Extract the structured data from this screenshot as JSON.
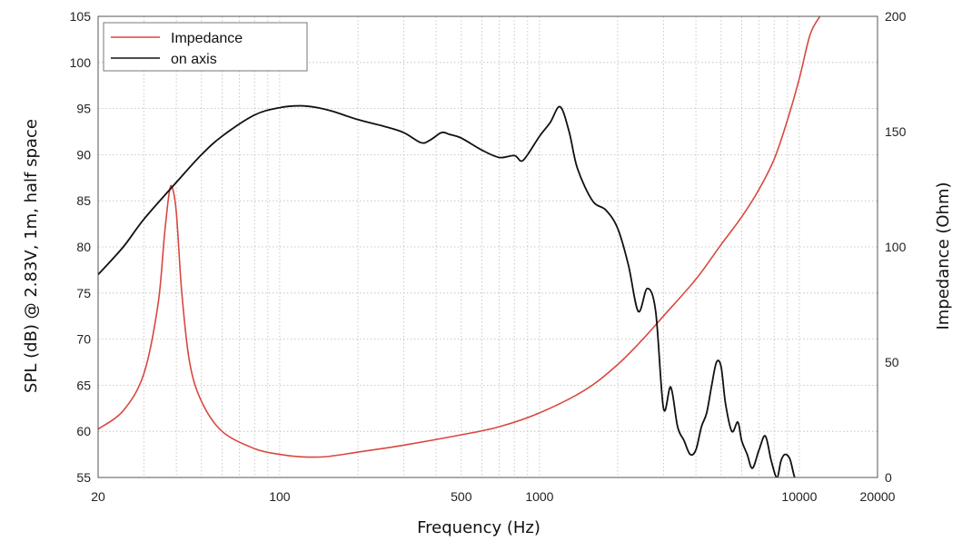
{
  "chart_data": {
    "type": "line",
    "title": "",
    "xlabel": "Frequency (Hz)",
    "ylabel": "SPL (dB) @ 2.83V, 1m, half space",
    "y2label": "Impedance (Ohm)",
    "x_scale": "log",
    "xlim": [
      20,
      20000
    ],
    "ylim": [
      55,
      105
    ],
    "y2lim": [
      0,
      200
    ],
    "grid": true,
    "legend_position": "top-left",
    "x_tick_labels": [
      "20",
      "100",
      "500",
      "1000",
      "10000",
      "20000"
    ],
    "y_tick_labels": [
      "55",
      "60",
      "65",
      "70",
      "75",
      "80",
      "85",
      "90",
      "95",
      "100",
      "105"
    ],
    "y2_tick_labels": [
      "0",
      "50",
      "100",
      "150",
      "200"
    ],
    "series": [
      {
        "name": "Impedance",
        "axis": "right",
        "color": "#d9473f",
        "x": [
          20,
          25,
          30,
          34,
          36,
          37.5,
          38.5,
          40,
          42,
          45,
          50,
          60,
          80,
          100,
          120,
          150,
          200,
          300,
          500,
          700,
          1000,
          1500,
          2000,
          2500,
          3000,
          4000,
          5000,
          6000,
          7000,
          8000,
          9000,
          10000,
          11000,
          12000
        ],
        "values": [
          21,
          29,
          45,
          75,
          105,
          123,
          126,
          115,
          80,
          50,
          33,
          20,
          12.5,
          10,
          9,
          9,
          11,
          14,
          18.5,
          22,
          28,
          38,
          49,
          60,
          70,
          86,
          101,
          113,
          125,
          138,
          155,
          173,
          192,
          200
        ]
      },
      {
        "name": "on axis",
        "axis": "left",
        "color": "#111111",
        "x": [
          20,
          25,
          30,
          40,
          50,
          60,
          80,
          100,
          120,
          140,
          160,
          200,
          250,
          300,
          350,
          380,
          420,
          450,
          500,
          600,
          700,
          800,
          850,
          900,
          1000,
          1100,
          1200,
          1300,
          1400,
          1600,
          1800,
          2000,
          2200,
          2400,
          2600,
          2800,
          3000,
          3200,
          3400,
          3600,
          3800,
          4000,
          4200,
          4400,
          4600,
          4800,
          5000,
          5200,
          5500,
          5800,
          6000,
          6300,
          6600,
          7000,
          7400,
          7800,
          8200,
          8500,
          8800,
          9200,
          9600,
          10000,
          10300
        ],
        "values": [
          77,
          80,
          83,
          87,
          90,
          92,
          94.3,
          95.1,
          95.3,
          95.1,
          94.7,
          93.8,
          93.1,
          92.4,
          91.3,
          91.6,
          92.4,
          92.2,
          91.8,
          90.5,
          89.7,
          89.9,
          89.3,
          90,
          92,
          93.5,
          95.2,
          92.5,
          88.5,
          85,
          84,
          82,
          78,
          73,
          75.5,
          73,
          62.5,
          64.8,
          60.5,
          59,
          57.5,
          58,
          60.5,
          62,
          65,
          67.5,
          67,
          63,
          60,
          61,
          59,
          57.5,
          56,
          58,
          59.5,
          56.8,
          55,
          56.8,
          57.5,
          57,
          55,
          54.5,
          54.5
        ]
      }
    ]
  }
}
